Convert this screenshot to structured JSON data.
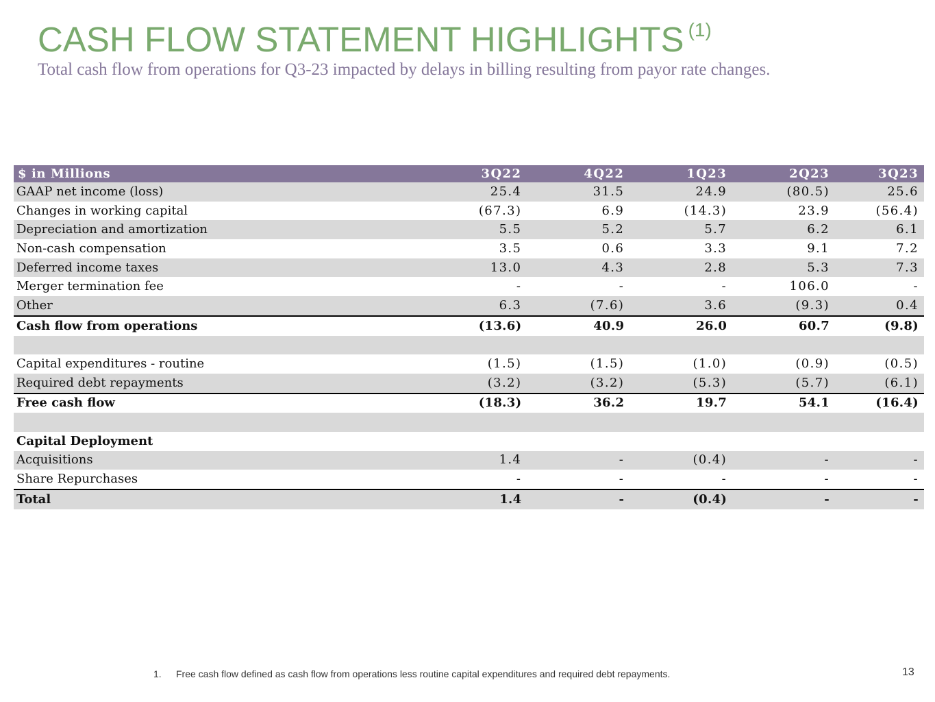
{
  "title": "CASH FLOW STATEMENT HIGHLIGHTS",
  "title_superscript": "(1)",
  "subtitle": "Total cash flow from operations for Q3-23 impacted by delays in billing resulting from payor rate changes.",
  "table": {
    "header": [
      "$ in Millions",
      "3Q22",
      "4Q22",
      "1Q23",
      "2Q23",
      "3Q23"
    ],
    "rows": [
      {
        "label": "GAAP net income (loss)",
        "values": [
          "25.4",
          "31.5",
          "24.9",
          "(80.5)",
          "25.6"
        ]
      },
      {
        "label": "Changes in working capital",
        "values": [
          "(67.3)",
          "6.9",
          "(14.3)",
          "23.9",
          "(56.4)"
        ]
      },
      {
        "label": "Depreciation and amortization",
        "values": [
          "5.5",
          "5.2",
          "5.7",
          "6.2",
          "6.1"
        ]
      },
      {
        "label": "Non-cash compensation",
        "values": [
          "3.5",
          "0.6",
          "3.3",
          "9.1",
          "7.2"
        ]
      },
      {
        "label": "Deferred income taxes",
        "values": [
          "13.0",
          "4.3",
          "2.8",
          "5.3",
          "7.3"
        ]
      },
      {
        "label": "Merger termination fee",
        "values": [
          "-",
          "-",
          "-",
          "106.0",
          "-"
        ]
      },
      {
        "label": "Other",
        "values": [
          "6.3",
          "(7.6)",
          "3.6",
          "(9.3)",
          "0.4"
        ]
      },
      {
        "label": "Cash flow from operations",
        "values": [
          "(13.6)",
          "40.9",
          "26.0",
          "60.7",
          "(9.8)"
        ]
      },
      {
        "label": "",
        "values": [
          "",
          "",
          "",
          "",
          ""
        ]
      },
      {
        "label": "Capital expenditures - routine",
        "values": [
          "(1.5)",
          "(1.5)",
          "(1.0)",
          "(0.9)",
          "(0.5)"
        ]
      },
      {
        "label": "Required debt repayments",
        "values": [
          "(3.2)",
          "(3.2)",
          "(5.3)",
          "(5.7)",
          "(6.1)"
        ]
      },
      {
        "label": "Free cash flow",
        "values": [
          "(18.3)",
          "36.2",
          "19.7",
          "54.1",
          "(16.4)"
        ]
      },
      {
        "label": "",
        "values": [
          "",
          "",
          "",
          "",
          ""
        ]
      },
      {
        "label": "Capital Deployment",
        "values": [
          "",
          "",
          "",
          "",
          ""
        ]
      },
      {
        "label": "Acquisitions",
        "values": [
          "1.4",
          "-",
          "(0.4)",
          "-",
          "-"
        ]
      },
      {
        "label": "Share Repurchases",
        "values": [
          "-",
          "-",
          "-",
          "-",
          "-"
        ]
      },
      {
        "label": "Total",
        "values": [
          "1.4",
          "-",
          "(0.4)",
          "-",
          "-"
        ]
      }
    ]
  },
  "footnote": {
    "number": "1.",
    "text": "Free cash flow defined as cash flow from operations less routine capital expenditures and required debt repayments."
  },
  "page_number": "13",
  "colors": {
    "title": "#7aaa6e",
    "subtitle": "#85779a",
    "header_bg": "#85779a",
    "band": "#d9d9d9"
  }
}
